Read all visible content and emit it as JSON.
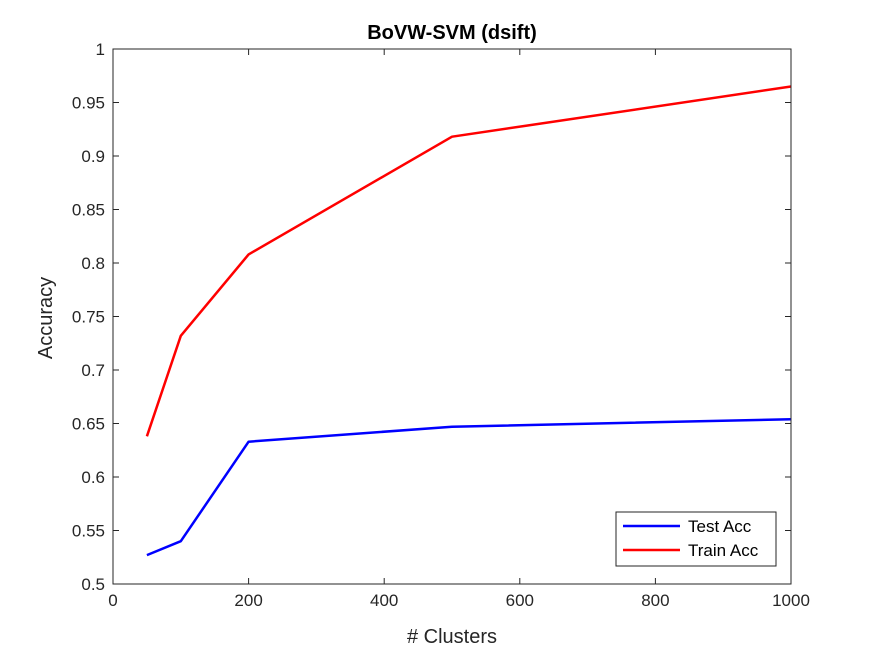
{
  "chart_data": {
    "type": "line",
    "title": "BoVW-SVM (dsift)",
    "xlabel": "# Clusters",
    "ylabel": "Accuracy",
    "xlim": [
      0,
      1000
    ],
    "ylim": [
      0.5,
      1
    ],
    "xticks": [
      0,
      200,
      400,
      600,
      800,
      1000
    ],
    "xtick_labels": [
      "0",
      "200",
      "400",
      "600",
      "800",
      "1000"
    ],
    "yticks": [
      0.5,
      0.55,
      0.6,
      0.65,
      0.7,
      0.75,
      0.8,
      0.85,
      0.9,
      0.95,
      1
    ],
    "ytick_labels": [
      "0.5",
      "0.55",
      "0.6",
      "0.65",
      "0.7",
      "0.75",
      "0.8",
      "0.85",
      "0.9",
      "0.95",
      "1"
    ],
    "grid": false,
    "legend_position": "bottom-right",
    "x": [
      50,
      100,
      200,
      500,
      1000
    ],
    "series": [
      {
        "name": "Test Acc",
        "color": "#0000ff",
        "values": [
          0.527,
          0.54,
          0.633,
          0.647,
          0.654
        ]
      },
      {
        "name": "Train Acc",
        "color": "#ff0000",
        "values": [
          0.638,
          0.732,
          0.808,
          0.918,
          0.965
        ]
      }
    ]
  }
}
